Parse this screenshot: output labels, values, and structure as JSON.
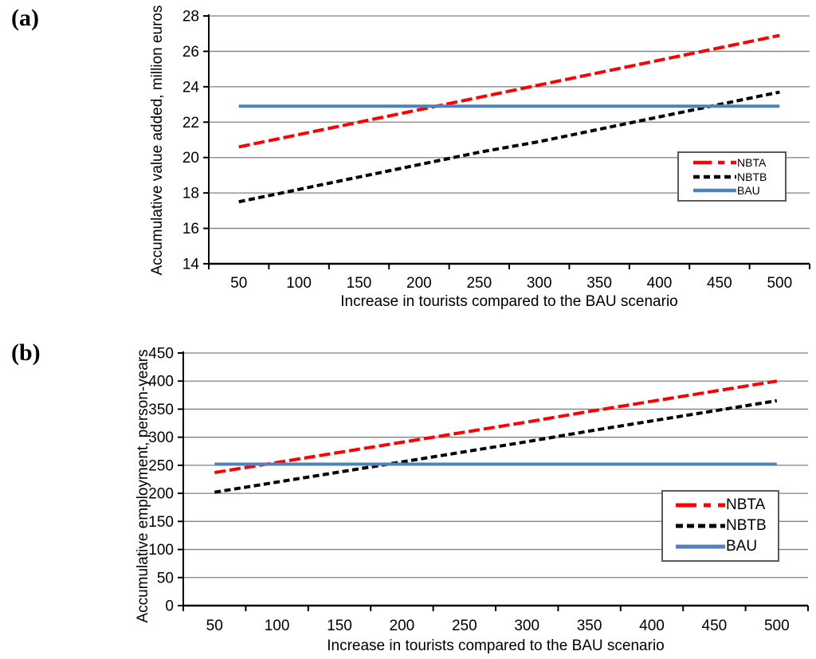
{
  "figure": {
    "panels": [
      {
        "label": "(a)"
      },
      {
        "label": "(b)"
      }
    ]
  },
  "chart_data": [
    {
      "type": "line",
      "panel_label": "(a)",
      "x": [
        50,
        100,
        150,
        200,
        250,
        300,
        350,
        400,
        450,
        500
      ],
      "series": [
        {
          "name": "NBTA",
          "color": "#FF0000",
          "line_style": "long-dash",
          "values": [
            20.6,
            21.3,
            22.0,
            22.7,
            23.4,
            24.1,
            24.8,
            25.5,
            26.2,
            26.9
          ]
        },
        {
          "name": "NBTB",
          "color": "#000000",
          "line_style": "short-dash",
          "values": [
            17.5,
            18.2,
            18.9,
            19.6,
            20.3,
            20.9,
            21.6,
            22.3,
            23.0,
            23.7
          ]
        },
        {
          "name": "BAU",
          "color": "#4F81BD",
          "line_style": "solid",
          "values": [
            22.9,
            22.9,
            22.9,
            22.9,
            22.9,
            22.9,
            22.9,
            22.9,
            22.9,
            22.9
          ]
        }
      ],
      "xlabel": "Increase in tourists compared to the BAU scenario",
      "ylabel": "Accumulative value added, million euros",
      "ylim": [
        14,
        28
      ],
      "yticks": [
        14,
        16,
        18,
        20,
        22,
        24,
        26,
        28
      ],
      "grid": "horizontal",
      "legend_position": "right-middle",
      "gridline_color": "#808080",
      "axis_color": "#000000"
    },
    {
      "type": "line",
      "panel_label": "(b)",
      "x": [
        50,
        100,
        150,
        200,
        250,
        300,
        350,
        400,
        450,
        500
      ],
      "series": [
        {
          "name": "NBTA",
          "color": "#FF0000",
          "line_style": "long-dash",
          "values": [
            237,
            255,
            273,
            291,
            309,
            327,
            346,
            364,
            382,
            400
          ]
        },
        {
          "name": "NBTB",
          "color": "#000000",
          "line_style": "short-dash",
          "values": [
            202,
            220,
            238,
            256,
            274,
            292,
            311,
            329,
            347,
            365
          ]
        },
        {
          "name": "BAU",
          "color": "#4F81BD",
          "line_style": "solid",
          "values": [
            252,
            252,
            252,
            252,
            252,
            252,
            252,
            252,
            252,
            252
          ]
        }
      ],
      "xlabel": "Increase in tourists compared to the BAU scenario",
      "ylabel": "Accumulative employment, person-years",
      "ylim": [
        0,
        450
      ],
      "yticks": [
        0,
        50,
        100,
        150,
        200,
        250,
        300,
        350,
        400,
        450
      ],
      "grid": "horizontal",
      "legend_position": "right-lower",
      "gridline_color": "#808080",
      "axis_color": "#000000"
    }
  ]
}
